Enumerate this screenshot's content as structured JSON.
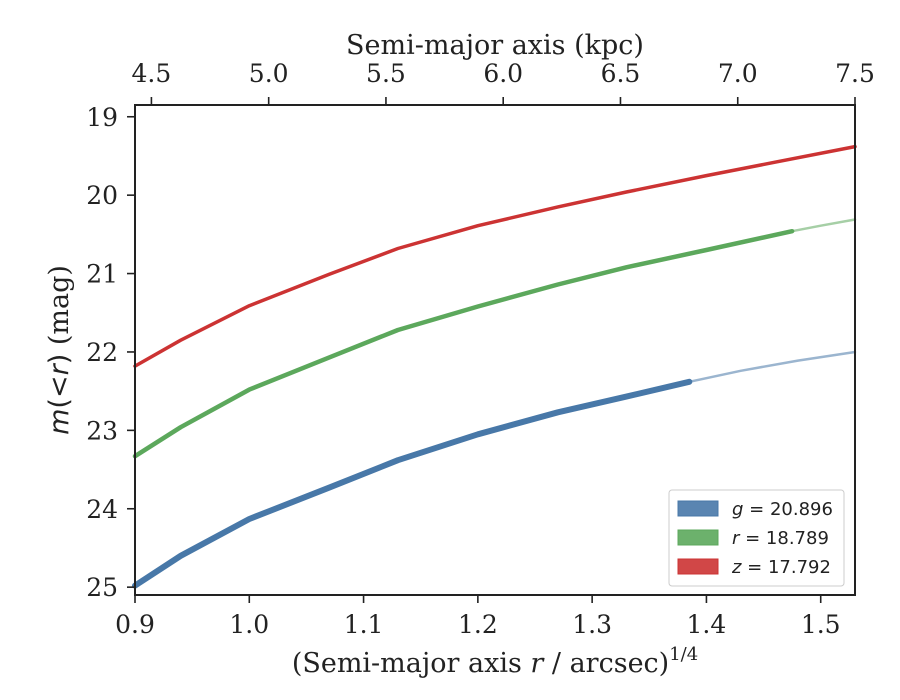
{
  "chart_data": {
    "type": "line",
    "xlabel": "(Semi-major axis r / arcsec)^{1/4}",
    "xlabel_parts": {
      "pre": "(Semi-major axis ",
      "var": "r",
      "post": " / arcsec)",
      "sup": "1/4"
    },
    "ylabel": "m(<r) (mag)",
    "ylabel_parts": {
      "m": "m",
      "open": "(",
      "lt": "<",
      "r": "r",
      "close": ")",
      "unit": " (mag)"
    },
    "top_xlabel": "Semi-major axis (kpc)",
    "xlim": [
      0.9,
      1.53
    ],
    "ylim": [
      25.1,
      18.85
    ],
    "y_inverted": true,
    "top_xlim": [
      4.43,
      7.5
    ],
    "xticks": [
      "0.9",
      "1.0",
      "1.1",
      "1.2",
      "1.3",
      "1.4",
      "1.5"
    ],
    "yticks": [
      "19",
      "20",
      "21",
      "22",
      "23",
      "24",
      "25"
    ],
    "top_xticks": [
      "4.5",
      "5.0",
      "5.5",
      "6.0",
      "6.5",
      "7.0",
      "7.5"
    ],
    "grid": false,
    "legend_position": "lower-right",
    "series": [
      {
        "name": "g = 20.896",
        "legend_var": "g",
        "legend_value": "= 20.896",
        "color": "#4878a8",
        "x": [
          0.9,
          0.94,
          1.0,
          1.07,
          1.13,
          1.2,
          1.27,
          1.33,
          1.385
        ],
        "y": [
          24.98,
          24.6,
          24.13,
          23.73,
          23.38,
          23.05,
          22.77,
          22.57,
          22.38
        ],
        "extension_x": [
          1.385,
          1.43,
          1.48,
          1.53
        ],
        "extension_y": [
          22.38,
          22.24,
          22.11,
          22.0
        ]
      },
      {
        "name": "r = 18.789",
        "legend_var": "r",
        "legend_value": "= 18.789",
        "color": "#5ca85c",
        "x": [
          0.9,
          0.94,
          1.0,
          1.07,
          1.13,
          1.2,
          1.27,
          1.33,
          1.4,
          1.475
        ],
        "y": [
          23.33,
          22.96,
          22.48,
          22.07,
          21.72,
          21.42,
          21.14,
          20.92,
          20.7,
          20.46
        ],
        "extension_x": [
          1.475,
          1.5,
          1.53
        ],
        "extension_y": [
          20.46,
          20.39,
          20.31
        ]
      },
      {
        "name": "z = 17.792",
        "legend_var": "z",
        "legend_value": "= 17.792",
        "color": "#cc3333",
        "x": [
          0.9,
          0.94,
          1.0,
          1.07,
          1.13,
          1.2,
          1.27,
          1.33,
          1.4,
          1.46,
          1.53
        ],
        "y": [
          22.18,
          21.85,
          21.41,
          21.01,
          20.68,
          20.39,
          20.15,
          19.96,
          19.75,
          19.58,
          19.38
        ]
      }
    ]
  }
}
